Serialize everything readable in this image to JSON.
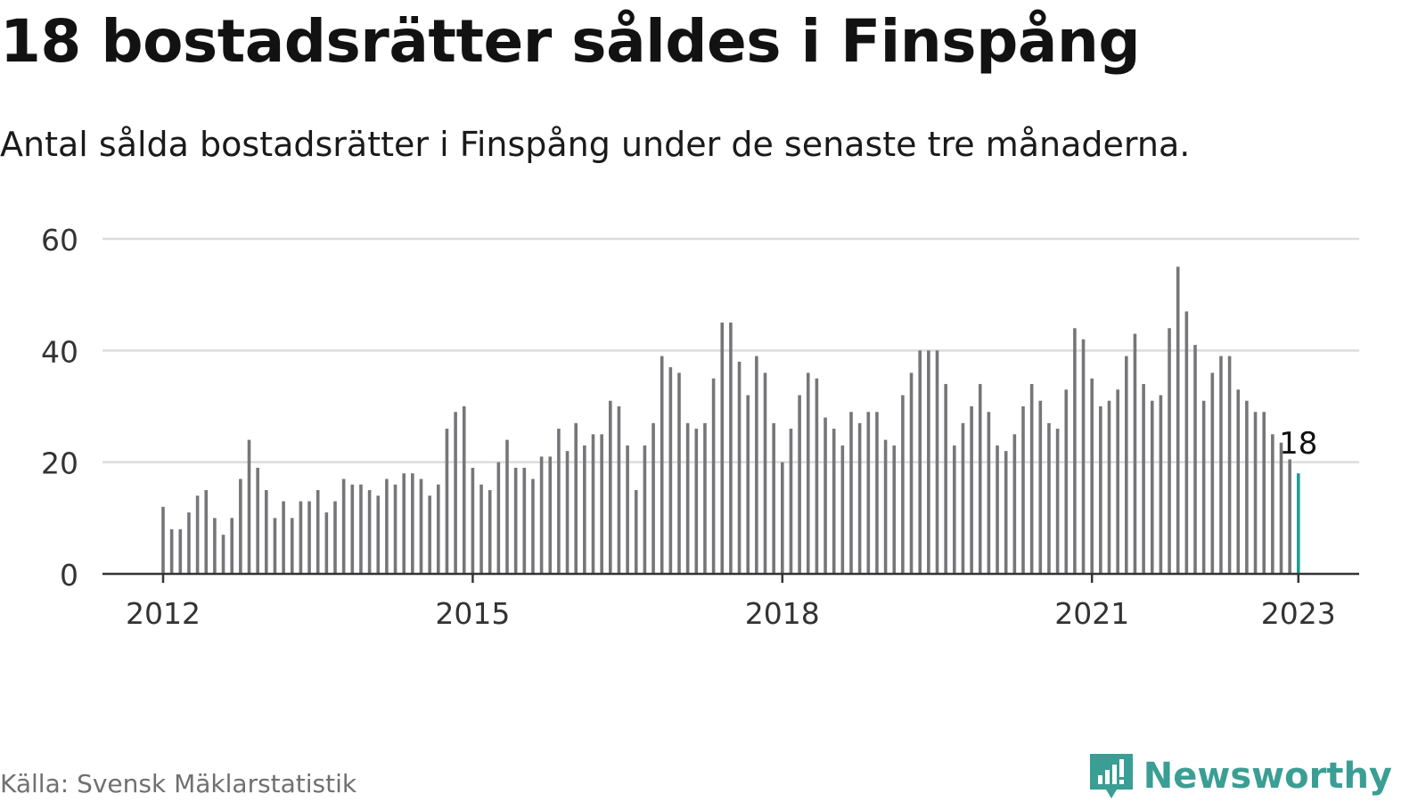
{
  "title": "18 bostadsrätter såldes i Finspång",
  "subtitle": "Antal sålda bostadsrätter i Finspång under de senaste tre månaderna.",
  "source": "Källa: Svensk Mäklarstatistik",
  "brand": {
    "name": "Newsworthy",
    "icon": "bar-chart-logo-icon"
  },
  "colors": {
    "bar": "#76767a",
    "highlight": "#1e9e93",
    "grid": "#dcdcdc",
    "axis": "#333333",
    "brand": "#3a9e94"
  },
  "chart_data": {
    "type": "bar",
    "title": "18 bostadsrätter såldes i Finspång",
    "subtitle": "Antal sålda bostadsrätter i Finspång under de senaste tre månaderna.",
    "x": [
      "2012-01",
      "2012-02",
      "2012-03",
      "2012-04",
      "2012-05",
      "2012-06",
      "2012-07",
      "2012-08",
      "2012-09",
      "2012-10",
      "2012-11",
      "2012-12",
      "2013-01",
      "2013-02",
      "2013-03",
      "2013-04",
      "2013-05",
      "2013-06",
      "2013-07",
      "2013-08",
      "2013-09",
      "2013-10",
      "2013-11",
      "2013-12",
      "2014-01",
      "2014-02",
      "2014-03",
      "2014-04",
      "2014-05",
      "2014-06",
      "2014-07",
      "2014-08",
      "2014-09",
      "2014-10",
      "2014-11",
      "2014-12",
      "2015-01",
      "2015-02",
      "2015-03",
      "2015-04",
      "2015-05",
      "2015-06",
      "2015-07",
      "2015-08",
      "2015-09",
      "2015-10",
      "2015-11",
      "2015-12",
      "2016-01",
      "2016-02",
      "2016-03",
      "2016-04",
      "2016-05",
      "2016-06",
      "2016-07",
      "2016-08",
      "2016-09",
      "2016-10",
      "2016-11",
      "2016-12",
      "2017-01",
      "2017-02",
      "2017-03",
      "2017-04",
      "2017-05",
      "2017-06",
      "2017-07",
      "2017-08",
      "2017-09",
      "2017-10",
      "2017-11",
      "2017-12",
      "2018-01",
      "2018-02",
      "2018-03",
      "2018-04",
      "2018-05",
      "2018-06",
      "2018-07",
      "2018-08",
      "2018-09",
      "2018-10",
      "2018-11",
      "2018-12",
      "2019-01",
      "2019-02",
      "2019-03",
      "2019-04",
      "2019-05",
      "2019-06",
      "2019-07",
      "2019-08",
      "2019-09",
      "2019-10",
      "2019-11",
      "2019-12",
      "2020-01",
      "2020-02",
      "2020-03",
      "2020-04",
      "2020-05",
      "2020-06",
      "2020-07",
      "2020-08",
      "2020-09",
      "2020-10",
      "2020-11",
      "2020-12",
      "2021-01",
      "2021-02",
      "2021-03",
      "2021-04",
      "2021-05",
      "2021-06",
      "2021-07",
      "2021-08",
      "2021-09",
      "2021-10",
      "2021-11",
      "2021-12",
      "2022-01",
      "2022-02",
      "2022-03",
      "2022-04",
      "2022-05",
      "2022-06",
      "2022-07",
      "2022-08",
      "2022-09",
      "2022-10",
      "2022-11",
      "2022-12",
      "2023-01"
    ],
    "values": [
      12,
      8,
      8,
      11,
      14,
      15,
      10,
      7,
      10,
      17,
      24,
      19,
      15,
      10,
      13,
      10,
      13,
      13,
      15,
      11,
      13,
      17,
      16,
      16,
      15,
      14,
      17,
      16,
      18,
      18,
      17,
      14,
      16,
      26,
      29,
      30,
      19,
      16,
      15,
      20,
      24,
      19,
      19,
      17,
      21,
      21,
      26,
      22,
      27,
      23,
      25,
      25,
      31,
      30,
      23,
      15,
      23,
      27,
      39,
      37,
      36,
      27,
      26,
      27,
      35,
      45,
      45,
      38,
      32,
      39,
      36,
      27,
      20,
      26,
      32,
      36,
      35,
      28,
      26,
      23,
      29,
      27,
      29,
      29,
      24,
      23,
      32,
      36,
      40,
      40,
      40,
      34,
      23,
      27,
      30,
      34,
      29,
      23,
      22,
      25,
      30,
      34,
      31,
      27,
      26,
      33,
      44,
      42,
      35,
      30,
      31,
      33,
      39,
      43,
      34,
      31,
      32,
      44,
      55,
      47,
      41,
      31,
      36,
      39,
      39,
      33,
      31,
      29,
      29,
      25,
      23.5,
      20.5,
      18
    ],
    "highlight_label": "18",
    "x_tick_labels": [
      "2012",
      "2015",
      "2018",
      "2021",
      "2023"
    ],
    "y_ticks": [
      0,
      20,
      40,
      60
    ],
    "ylim": [
      0,
      60
    ],
    "grid": true,
    "legend": "none"
  }
}
